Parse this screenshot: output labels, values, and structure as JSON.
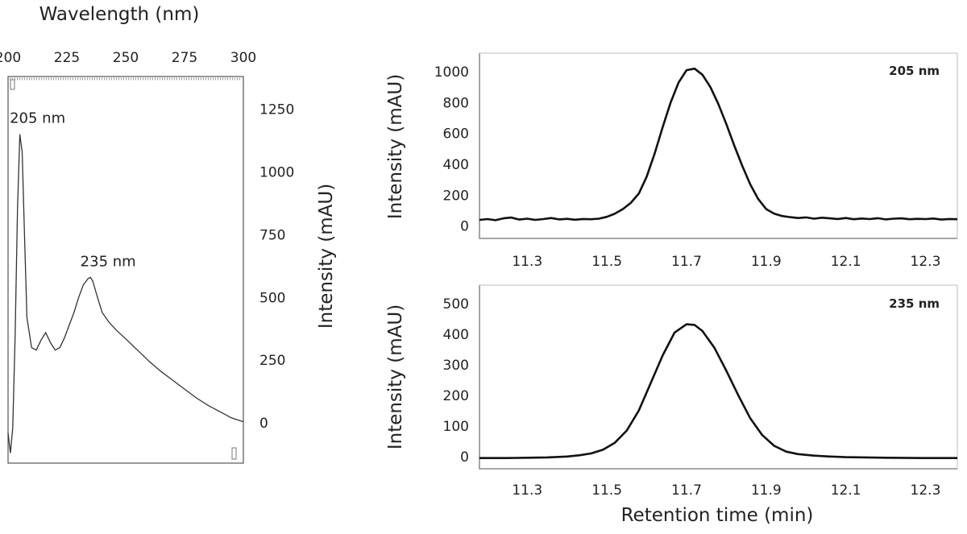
{
  "chart_data": [
    {
      "type": "line",
      "title": "",
      "xlabel": "Wavelength (nm)",
      "ylabel": "Intensity (mAU)",
      "xlim": [
        200,
        300
      ],
      "ylim": [
        -160,
        1380
      ],
      "x_ticks": [
        200,
        225,
        250,
        275,
        300
      ],
      "y_ticks": [
        0,
        250,
        500,
        750,
        1000,
        1250
      ],
      "grid": false,
      "annotations": [
        {
          "text": "205 nm",
          "x": 205,
          "y": 1150
        },
        {
          "text": "235 nm",
          "x": 235,
          "y": 580
        }
      ],
      "series": [
        {
          "x": [
            200,
            201,
            202,
            203,
            204,
            205,
            206,
            207,
            208,
            210,
            212,
            214,
            216,
            218,
            220,
            222,
            224,
            226,
            228,
            230,
            232,
            234,
            235,
            236,
            238,
            240,
            243,
            246,
            250,
            255,
            260,
            265,
            270,
            275,
            280,
            285,
            290,
            295,
            300
          ],
          "values": [
            -40,
            -120,
            -20,
            350,
            850,
            1150,
            1080,
            750,
            420,
            300,
            290,
            330,
            360,
            320,
            290,
            300,
            340,
            390,
            440,
            500,
            550,
            575,
            580,
            565,
            500,
            440,
            400,
            370,
            335,
            290,
            245,
            205,
            170,
            135,
            100,
            70,
            45,
            20,
            5
          ]
        }
      ]
    },
    {
      "type": "line",
      "title": "205 nm",
      "xlabel": "",
      "ylabel": "Intensity (mAU)",
      "xlim": [
        11.18,
        12.38
      ],
      "ylim": [
        -80,
        1120
      ],
      "x_ticks": [
        11.3,
        11.5,
        11.7,
        11.9,
        12.1,
        12.3
      ],
      "y_ticks": [
        0,
        200,
        400,
        600,
        800,
        1000
      ],
      "grid": false,
      "series": [
        {
          "x": [
            11.18,
            11.2,
            11.22,
            11.24,
            11.26,
            11.28,
            11.3,
            11.32,
            11.34,
            11.36,
            11.38,
            11.4,
            11.42,
            11.44,
            11.46,
            11.48,
            11.5,
            11.52,
            11.54,
            11.56,
            11.58,
            11.6,
            11.62,
            11.64,
            11.66,
            11.68,
            11.7,
            11.72,
            11.74,
            11.76,
            11.78,
            11.8,
            11.82,
            11.84,
            11.86,
            11.88,
            11.9,
            11.92,
            11.94,
            11.96,
            11.98,
            12.0,
            12.02,
            12.04,
            12.06,
            12.08,
            12.1,
            12.12,
            12.14,
            12.16,
            12.18,
            12.2,
            12.22,
            12.24,
            12.26,
            12.28,
            12.3,
            12.32,
            12.34,
            12.36,
            12.38
          ],
          "values": [
            40,
            45,
            38,
            50,
            55,
            42,
            48,
            40,
            45,
            52,
            43,
            47,
            41,
            46,
            44,
            48,
            60,
            80,
            110,
            150,
            210,
            320,
            470,
            640,
            800,
            930,
            1010,
            1020,
            980,
            900,
            790,
            660,
            520,
            390,
            270,
            175,
            110,
            80,
            65,
            58,
            52,
            56,
            48,
            54,
            50,
            46,
            52,
            44,
            49,
            45,
            51,
            43,
            48,
            50,
            44,
            47,
            45,
            49,
            42,
            46,
            44
          ]
        }
      ]
    },
    {
      "type": "line",
      "title": "235 nm",
      "xlabel": "Retention time (min)",
      "ylabel": "Intensity (mAU)",
      "xlim": [
        11.18,
        12.38
      ],
      "ylim": [
        -40,
        560
      ],
      "x_ticks": [
        11.3,
        11.5,
        11.7,
        11.9,
        12.1,
        12.3
      ],
      "y_ticks": [
        0,
        100,
        200,
        300,
        400,
        500
      ],
      "grid": false,
      "series": [
        {
          "x": [
            11.18,
            11.25,
            11.3,
            11.35,
            11.4,
            11.43,
            11.46,
            11.49,
            11.52,
            11.55,
            11.58,
            11.61,
            11.64,
            11.67,
            11.7,
            11.72,
            11.74,
            11.77,
            11.8,
            11.83,
            11.86,
            11.89,
            11.92,
            11.95,
            11.98,
            12.02,
            12.06,
            12.1,
            12.2,
            12.3,
            12.38
          ],
          "values": [
            -5,
            -5,
            -4,
            -3,
            0,
            4,
            10,
            22,
            45,
            85,
            150,
            240,
            330,
            405,
            432,
            430,
            410,
            355,
            280,
            200,
            125,
            70,
            35,
            16,
            8,
            3,
            0,
            -2,
            -4,
            -5,
            -5
          ]
        }
      ]
    }
  ]
}
